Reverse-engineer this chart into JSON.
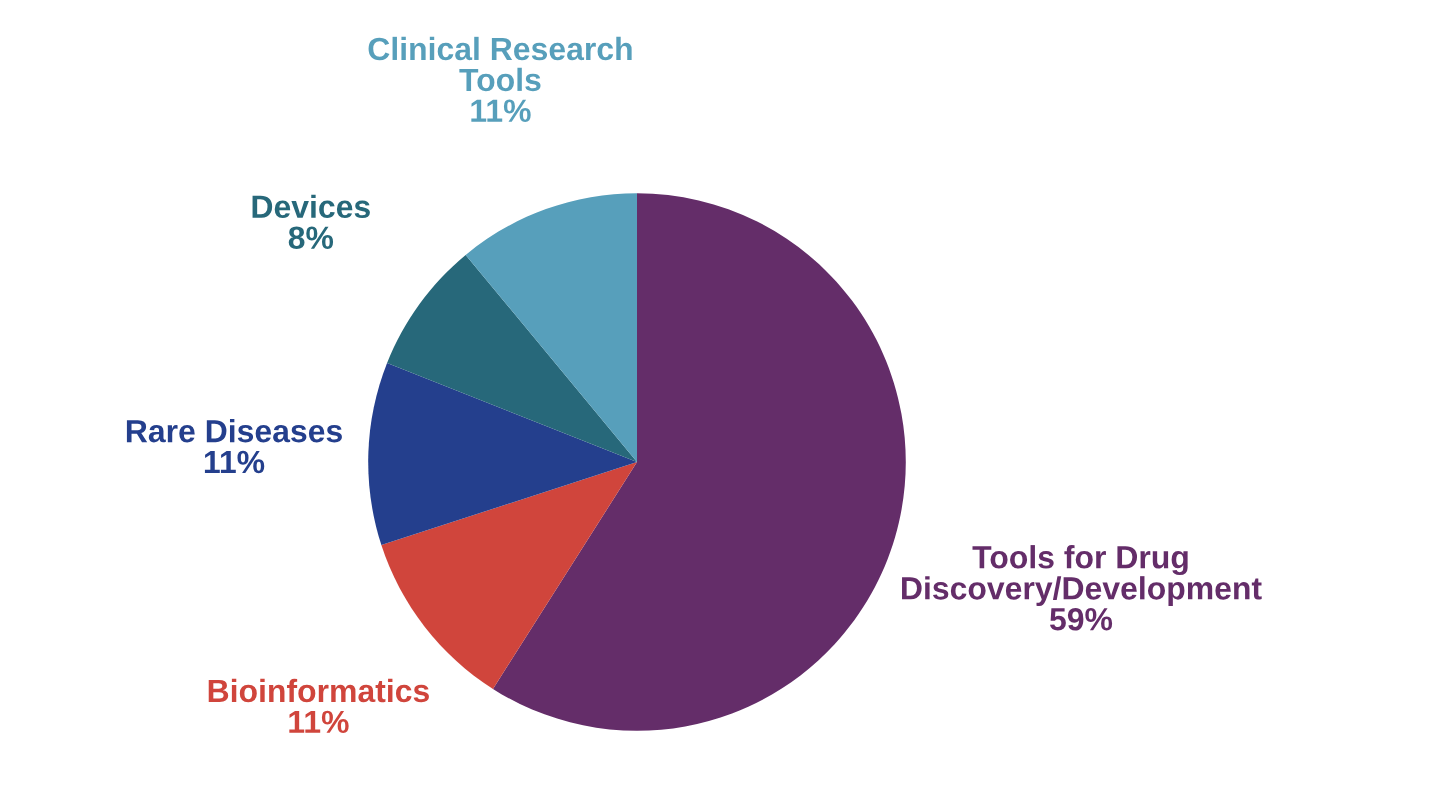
{
  "chart_data": {
    "type": "pie",
    "categories": [
      "Tools for Drug\nDiscovery/Development",
      "Bioinformatics",
      "Rare Diseases",
      "Devices",
      "Clinical Research\nTools"
    ],
    "values": [
      59,
      11,
      11,
      8,
      11
    ],
    "colors": [
      "#642d69",
      "#d0453c",
      "#243f8d",
      "#27687a",
      "#579fbb"
    ],
    "value_labels": [
      "59%",
      "11%",
      "11%",
      "8%",
      "11%"
    ]
  }
}
